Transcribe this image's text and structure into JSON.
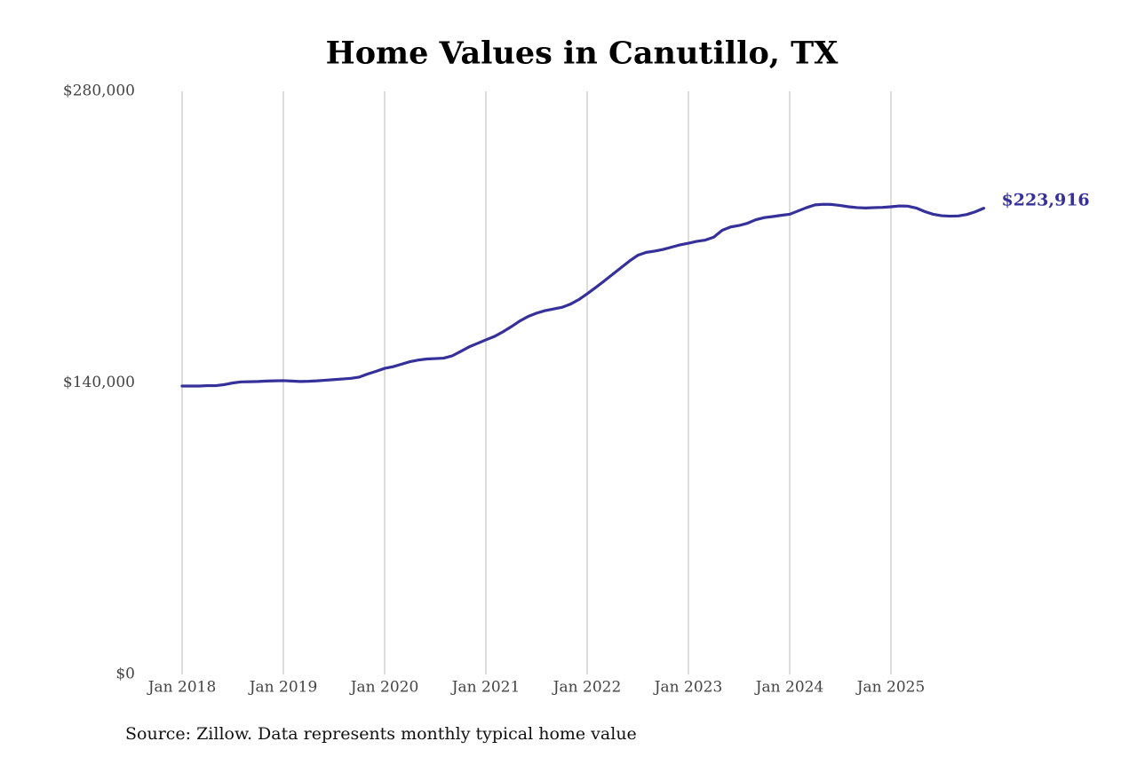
{
  "chart_data": {
    "type": "line",
    "title": "Home Values in Canutillo, TX",
    "source": "Source: Zillow. Data represents monthly typical home value",
    "x": [
      "2018-01",
      "2018-02",
      "2018-03",
      "2018-04",
      "2018-05",
      "2018-06",
      "2018-07",
      "2018-08",
      "2018-09",
      "2018-10",
      "2018-11",
      "2018-12",
      "2019-01",
      "2019-02",
      "2019-03",
      "2019-04",
      "2019-05",
      "2019-06",
      "2019-07",
      "2019-08",
      "2019-09",
      "2019-10",
      "2019-11",
      "2019-12",
      "2020-01",
      "2020-02",
      "2020-03",
      "2020-04",
      "2020-05",
      "2020-06",
      "2020-07",
      "2020-08",
      "2020-09",
      "2020-10",
      "2020-11",
      "2020-12",
      "2021-01",
      "2021-02",
      "2021-03",
      "2021-04",
      "2021-05",
      "2021-06",
      "2021-07",
      "2021-08",
      "2021-09",
      "2021-10",
      "2021-11",
      "2021-12",
      "2022-01",
      "2022-02",
      "2022-03",
      "2022-04",
      "2022-05",
      "2022-06",
      "2022-07",
      "2022-08",
      "2022-09",
      "2022-10",
      "2022-11",
      "2022-12",
      "2023-01",
      "2023-02",
      "2023-03",
      "2023-04",
      "2023-05",
      "2023-06",
      "2023-07",
      "2023-08",
      "2023-09",
      "2023-10",
      "2023-11",
      "2023-12",
      "2024-01",
      "2024-02",
      "2024-03",
      "2024-04",
      "2024-05",
      "2024-06",
      "2024-07",
      "2024-08",
      "2024-09",
      "2024-10",
      "2024-11",
      "2024-12",
      "2025-01",
      "2025-02",
      "2025-03",
      "2025-04",
      "2025-05",
      "2025-06",
      "2025-07",
      "2025-08",
      "2025-09",
      "2025-10",
      "2025-11",
      "2025-12"
    ],
    "series": [
      {
        "color": "#36309a",
        "values": [
          138500,
          138500,
          138500,
          138700,
          138700,
          139200,
          140000,
          140500,
          140600,
          140700,
          140900,
          141000,
          141100,
          140900,
          140700,
          140800,
          141000,
          141300,
          141600,
          141900,
          142200,
          142800,
          144300,
          145600,
          147000,
          147800,
          149000,
          150200,
          151000,
          151500,
          151700,
          151900,
          153000,
          155100,
          157300,
          159000,
          160700,
          162300,
          164500,
          167000,
          169700,
          171900,
          173500,
          174700,
          175500,
          176300,
          177800,
          180000,
          182800,
          185800,
          188900,
          192100,
          195300,
          198500,
          201300,
          202700,
          203300,
          204100,
          205200,
          206300,
          207100,
          208000,
          208600,
          210000,
          213300,
          214900,
          215600,
          216700,
          218400,
          219400,
          219900,
          220500,
          221000,
          222600,
          224200,
          225500,
          225800,
          225700,
          225200,
          224600,
          224200,
          224000,
          224200,
          224300,
          224600,
          225000,
          224900,
          224000,
          222300,
          221000,
          220300,
          220100,
          220200,
          220900,
          222200,
          223916
        ],
        "value_labels": [
          null,
          null,
          null,
          null,
          null,
          null,
          null,
          null,
          null,
          null,
          null,
          null,
          null,
          null,
          null,
          null,
          null,
          null,
          null,
          null,
          null,
          null,
          null,
          null,
          null,
          null,
          null,
          null,
          null,
          null,
          null,
          null,
          null,
          null,
          null,
          null,
          null,
          null,
          null,
          null,
          null,
          null,
          null,
          null,
          null,
          null,
          null,
          null,
          null,
          null,
          null,
          null,
          null,
          null,
          null,
          null,
          null,
          null,
          null,
          null,
          null,
          null,
          null,
          null,
          null,
          null,
          null,
          null,
          null,
          null,
          null,
          null,
          null,
          null,
          null,
          null,
          null,
          null,
          null,
          null,
          null,
          null,
          null,
          null,
          null,
          null,
          null,
          null,
          null,
          null,
          null,
          null,
          null,
          null,
          null,
          "$223,916"
        ]
      }
    ],
    "xlim": [
      "2018-01",
      "2025-12"
    ],
    "xticks": [
      {
        "value": "2018-01",
        "label": "Jan 2018"
      },
      {
        "value": "2019-01",
        "label": "Jan 2019"
      },
      {
        "value": "2020-01",
        "label": "Jan 2020"
      },
      {
        "value": "2021-01",
        "label": "Jan 2021"
      },
      {
        "value": "2022-01",
        "label": "Jan 2022"
      },
      {
        "value": "2023-01",
        "label": "Jan 2023"
      },
      {
        "value": "2024-01",
        "label": "Jan 2024"
      },
      {
        "value": "2025-01",
        "label": "Jan 2025"
      }
    ],
    "ylim": [
      0,
      280000
    ],
    "yticks": [
      {
        "value": 0,
        "label": "$0"
      },
      {
        "value": 140000,
        "label": "$140,000"
      },
      {
        "value": 280000,
        "label": "$280,000"
      }
    ],
    "grid": "x"
  }
}
